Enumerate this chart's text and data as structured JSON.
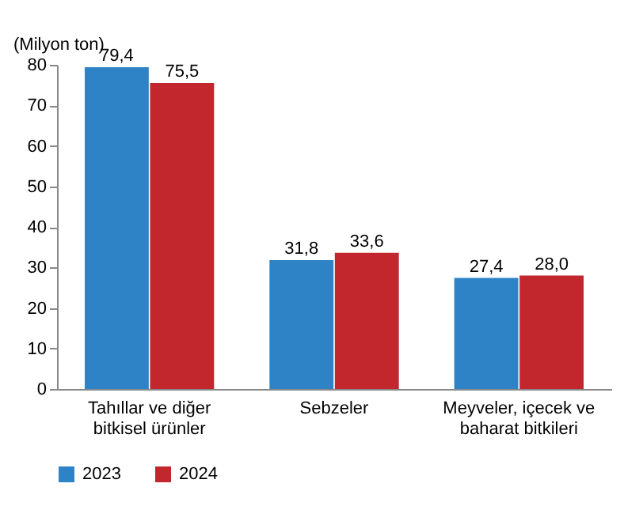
{
  "chart_data": {
    "type": "bar",
    "ylabel": "(Milyon ton)",
    "categories": [
      "Tahıllar ve diğer bitkisel ürünler",
      "Sebzeler",
      "Meyveler, içecek ve baharat bitkileri"
    ],
    "series": [
      {
        "name": "2023",
        "color": "#2e83c6",
        "values": [
          79.4,
          31.8,
          27.4
        ]
      },
      {
        "name": "2024",
        "color": "#c1272d",
        "values": [
          75.5,
          33.6,
          28.0
        ]
      }
    ],
    "value_labels": [
      [
        "79,4",
        "31,8",
        "27,4"
      ],
      [
        "75,5",
        "33,6",
        "28,0"
      ]
    ],
    "ylim": [
      0,
      80
    ],
    "yticks": [
      0,
      10,
      20,
      30,
      40,
      50,
      60,
      70,
      80
    ],
    "grid": false,
    "legend": "bottom"
  }
}
